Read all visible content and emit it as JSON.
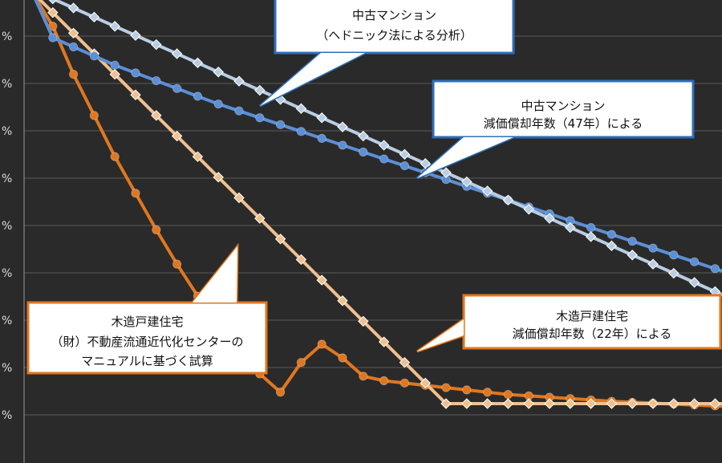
{
  "chart_data": {
    "type": "line",
    "x": [
      0,
      1,
      2,
      3,
      4,
      5,
      6,
      7,
      8,
      9,
      10,
      11,
      12,
      13,
      14,
      15,
      16,
      17,
      18,
      19,
      20,
      21,
      22,
      23,
      24,
      25,
      26,
      27,
      28,
      29,
      30,
      31,
      32,
      33,
      34,
      35
    ],
    "ytick_labels": [
      "%",
      "%",
      "%",
      "%",
      "%",
      "%",
      "%",
      "%",
      "%"
    ],
    "grid": true,
    "series": [
      {
        "key": "mansion_straight",
        "color": "#b9cde3",
        "marker": "diamond",
        "values": [
          1.0,
          0.985,
          0.965,
          0.945,
          0.925,
          0.905,
          0.885,
          0.865,
          0.845,
          0.825,
          0.805,
          0.785,
          0.765,
          0.745,
          0.725,
          0.705,
          0.685,
          0.665,
          0.645,
          0.625,
          0.605,
          0.585,
          0.565,
          0.545,
          0.525,
          0.505,
          0.485,
          0.465,
          0.445,
          0.425,
          0.405,
          0.385,
          0.365,
          0.345,
          0.325,
          0.305
        ]
      },
      {
        "key": "mansion_hedonic",
        "color": "#5b8fd6",
        "marker": "circle",
        "values": [
          1.0,
          0.9,
          0.88,
          0.86,
          0.84,
          0.823,
          0.806,
          0.789,
          0.772,
          0.755,
          0.74,
          0.725,
          0.71,
          0.695,
          0.68,
          0.665,
          0.65,
          0.635,
          0.62,
          0.605,
          0.59,
          0.575,
          0.56,
          0.545,
          0.53,
          0.515,
          0.5,
          0.485,
          0.47,
          0.455,
          0.44,
          0.425,
          0.41,
          0.395,
          0.38,
          0.365
        ]
      },
      {
        "key": "house_straight",
        "color": "#f0c08f",
        "marker": "diamond",
        "values": [
          1.0,
          0.955,
          0.91,
          0.865,
          0.82,
          0.775,
          0.73,
          0.685,
          0.64,
          0.595,
          0.55,
          0.505,
          0.46,
          0.415,
          0.37,
          0.325,
          0.28,
          0.235,
          0.19,
          0.145,
          0.1,
          0.1,
          0.1,
          0.1,
          0.1,
          0.1,
          0.1,
          0.1,
          0.1,
          0.1,
          0.1,
          0.1,
          0.1,
          0.1,
          0.1,
          0.1
        ]
      },
      {
        "key": "house_manual",
        "color": "#e0771f",
        "marker": "circle",
        "values": [
          1.0,
          0.925,
          0.82,
          0.73,
          0.64,
          0.56,
          0.48,
          0.405,
          0.335,
          0.27,
          0.215,
          0.165,
          0.125,
          0.19,
          0.23,
          0.2,
          0.16,
          0.15,
          0.145,
          0.14,
          0.135,
          0.13,
          0.125,
          0.12,
          0.117,
          0.114,
          0.111,
          0.108,
          0.105,
          0.103,
          0.101,
          0.099,
          0.097,
          0.095,
          0.093,
          0.091
        ]
      }
    ]
  },
  "callouts": [
    {
      "key": "mansion_hedonic",
      "lines": [
        "中古マンション",
        "（ヘドニック法による分析）"
      ]
    },
    {
      "key": "mansion_straight",
      "lines": [
        "中古マンション",
        "減価償却年数（47年）による"
      ]
    },
    {
      "key": "house_manual",
      "lines": [
        "木造戸建住宅",
        "（財）不動産流通近代化センターの",
        "マニュアルに基づく試算"
      ]
    },
    {
      "key": "house_straight",
      "lines": [
        "木造戸建住宅",
        "減価償却年数（22年）による"
      ]
    }
  ]
}
